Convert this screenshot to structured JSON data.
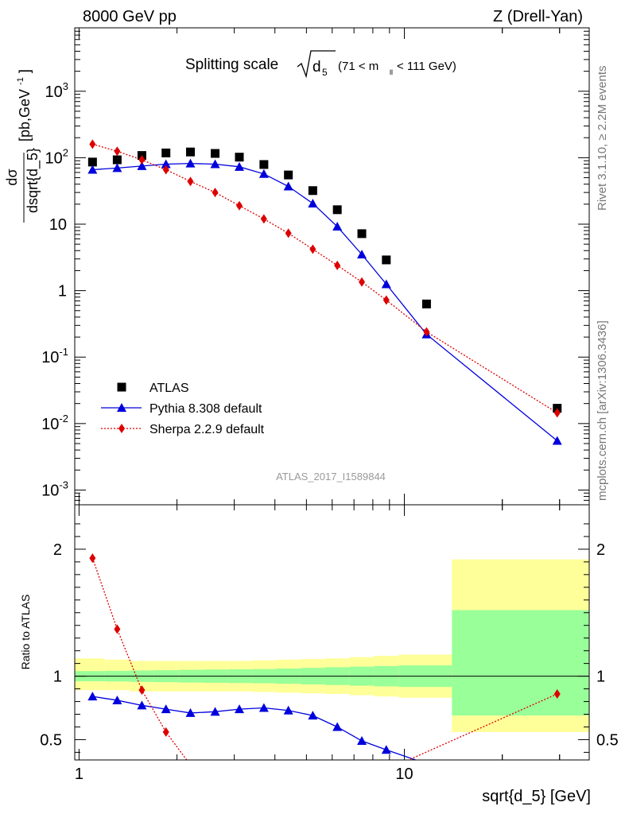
{
  "header": {
    "left": "8000 GeV pp",
    "right": "Z (Drell-Yan)"
  },
  "title": {
    "main": "Splitting scale",
    "symbol": "d",
    "sub": "5",
    "range_prefix": "(71 < m",
    "range_sub": "ll",
    "range_suffix": " < 111 GeV)"
  },
  "side_labels": {
    "rivet": "Rivet 3.1.10, ≥ 2.2M events",
    "mcplots": "mcplots.cern.ch [arXiv:1306.3436]"
  },
  "analysis_id": "ATLAS_2017_I1589844",
  "axes": {
    "y_main_label": {
      "numerator": "dσ",
      "denominator": "dsqrt{d_5}",
      "unit": "[pb,GeV",
      "unit_sup": "-1",
      "unit_close": "]"
    },
    "y_ratio_label": "Ratio to ATLAS",
    "x_label": "sqrt{d_5} [GeV]"
  },
  "colors": {
    "atlas": "#000000",
    "pythia": "#0000dd",
    "sherpa": "#dd0000",
    "band_inner": "#99ff99",
    "band_outer": "#ffff99"
  },
  "chart_data": [
    {
      "type": "line",
      "panel": "main",
      "xscale": "log",
      "yscale": "log",
      "xlim": [
        0.97,
        37
      ],
      "ylim": [
        0.0006,
        9000
      ],
      "y_ticks": [
        {
          "base": "10",
          "exp": "-3",
          "value": 0.001
        },
        {
          "base": "10",
          "exp": "-2",
          "value": 0.01
        },
        {
          "base": "10",
          "exp": "-1",
          "value": 0.1
        },
        {
          "base": "1",
          "exp": "",
          "value": 1
        },
        {
          "base": "10",
          "exp": "",
          "value": 10
        },
        {
          "base": "10",
          "exp": "2",
          "value": 100
        },
        {
          "base": "10",
          "exp": "3",
          "value": 1000
        }
      ],
      "legend_position": "lower-left",
      "series": [
        {
          "name": "ATLAS",
          "marker": "square",
          "x": [
            1.1,
            1.31,
            1.56,
            1.85,
            2.2,
            2.62,
            3.11,
            3.7,
            4.4,
            5.23,
            6.22,
            7.4,
            8.8,
            11.7,
            29.5
          ],
          "y": [
            86,
            93,
            108,
            118,
            122,
            116,
            102,
            79,
            55,
            32,
            16.5,
            7.2,
            2.9,
            0.63,
            0.017
          ]
        },
        {
          "name": "Pythia 8.308 default",
          "marker": "triangle",
          "x": [
            1.1,
            1.31,
            1.56,
            1.85,
            2.2,
            2.62,
            3.11,
            3.7,
            4.4,
            5.23,
            6.22,
            7.4,
            8.8,
            11.7,
            29.5
          ],
          "y": [
            66,
            70,
            75,
            80,
            82,
            80,
            73,
            57,
            37,
            20.5,
            9.2,
            3.5,
            1.25,
            0.22,
            0.0055
          ]
        },
        {
          "name": "Sherpa 2.2.9 default",
          "marker": "diamond",
          "x": [
            1.1,
            1.31,
            1.56,
            1.85,
            2.2,
            2.62,
            3.11,
            3.7,
            4.4,
            5.23,
            6.22,
            7.4,
            8.8,
            11.7,
            29.5
          ],
          "y": [
            160,
            125,
            93,
            66,
            44,
            30,
            19,
            12,
            7.3,
            4.2,
            2.4,
            1.35,
            0.72,
            0.24,
            0.0145
          ]
        }
      ]
    },
    {
      "type": "line",
      "panel": "ratio",
      "xscale": "log",
      "yscale": "linear",
      "xlim": [
        0.97,
        37
      ],
      "ylim": [
        0.34,
        2.35
      ],
      "x_ticks": [
        "1",
        "10"
      ],
      "y_ticks": [
        "0.5",
        "1",
        "2"
      ],
      "reference_line": 1,
      "bands": {
        "edges": [
          0.97,
          1.2,
          1.43,
          1.7,
          2.02,
          2.4,
          2.86,
          3.4,
          4.04,
          4.8,
          5.71,
          6.79,
          8.07,
          9.6,
          14.0,
          37
        ],
        "inner": [
          [
            0.96,
            1.04
          ],
          [
            0.958,
            1.042
          ],
          [
            0.955,
            1.045
          ],
          [
            0.953,
            1.047
          ],
          [
            0.95,
            1.05
          ],
          [
            0.948,
            1.052
          ],
          [
            0.946,
            1.054
          ],
          [
            0.944,
            1.056
          ],
          [
            0.94,
            1.06
          ],
          [
            0.935,
            1.065
          ],
          [
            0.93,
            1.07
          ],
          [
            0.925,
            1.075
          ],
          [
            0.92,
            1.08
          ],
          [
            0.915,
            1.085
          ],
          [
            0.69,
            1.52
          ]
        ],
        "outer": [
          [
            0.89,
            1.14
          ],
          [
            0.89,
            1.13
          ],
          [
            0.88,
            1.12
          ],
          [
            0.88,
            1.12
          ],
          [
            0.88,
            1.12
          ],
          [
            0.88,
            1.12
          ],
          [
            0.88,
            1.12
          ],
          [
            0.875,
            1.125
          ],
          [
            0.87,
            1.13
          ],
          [
            0.865,
            1.135
          ],
          [
            0.86,
            1.14
          ],
          [
            0.85,
            1.15
          ],
          [
            0.84,
            1.16
          ],
          [
            0.83,
            1.17
          ],
          [
            0.56,
            1.92
          ]
        ]
      },
      "series": [
        {
          "name": "Pythia 8.308 default",
          "marker": "triangle",
          "x": [
            1.1,
            1.31,
            1.56,
            1.85,
            2.2,
            2.62,
            3.11,
            3.7,
            4.4,
            5.23,
            6.22,
            7.4,
            8.8,
            11.7
          ],
          "y": [
            0.84,
            0.81,
            0.77,
            0.74,
            0.71,
            0.72,
            0.74,
            0.75,
            0.73,
            0.69,
            0.6,
            0.49,
            0.42,
            0.31
          ]
        },
        {
          "name": "Sherpa 2.2.9 default",
          "marker": "diamond",
          "x": [
            1.1,
            1.31,
            1.56,
            1.85,
            2.2,
            9.5,
            29.5
          ],
          "y": [
            1.93,
            1.37,
            0.89,
            0.56,
            0.3,
            0.3,
            0.86
          ]
        }
      ]
    }
  ]
}
